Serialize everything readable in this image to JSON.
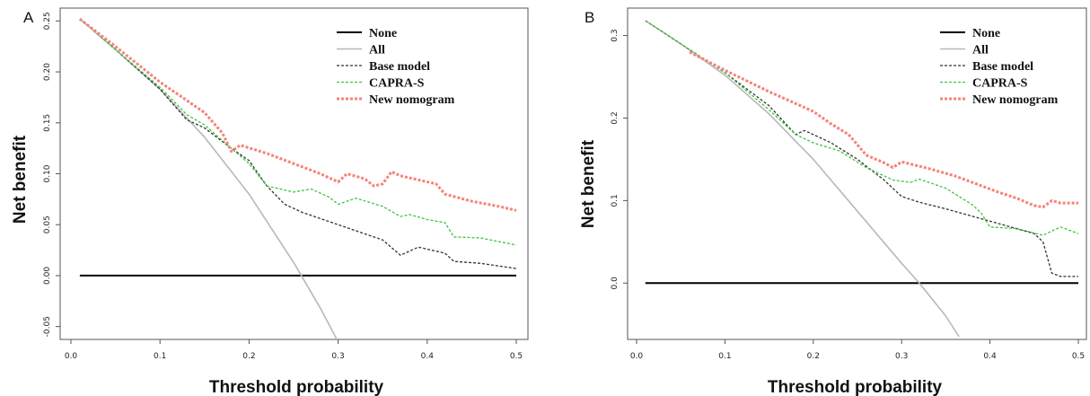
{
  "chart_data": [
    {
      "type": "line",
      "panel_label": "A",
      "xlabel": "Threshold probability",
      "ylabel": "Net benefit",
      "xlim": [
        0,
        0.5
      ],
      "ylim": [
        -0.06,
        0.26
      ],
      "x_ticks": [
        "0.0",
        "0.1",
        "0.2",
        "0.3",
        "0.4",
        "0.5"
      ],
      "x_tick_values": [
        0,
        0.1,
        0.2,
        0.3,
        0.4,
        0.5
      ],
      "y_ticks": [
        "-0.05",
        "0.00",
        "0.05",
        "0.10",
        "0.15",
        "0.20",
        "0.25"
      ],
      "y_tick_values": [
        -0.05,
        0.0,
        0.05,
        0.1,
        0.15,
        0.2,
        0.25
      ],
      "legend_position": "top-right",
      "grid": false,
      "series": [
        {
          "name": "None",
          "color": "#000000",
          "dash": "solid",
          "width": 2,
          "points": [
            [
              0.01,
              0.0
            ],
            [
              0.5,
              0.0
            ]
          ]
        },
        {
          "name": "All",
          "color": "#b8b8b8",
          "dash": "solid",
          "width": 1.6,
          "points": [
            [
              0.01,
              0.252
            ],
            [
              0.05,
              0.222
            ],
            [
              0.1,
              0.183
            ],
            [
              0.15,
              0.136
            ],
            [
              0.2,
              0.08
            ],
            [
              0.25,
              0.013
            ],
            [
              0.28,
              -0.032
            ],
            [
              0.3,
              -0.065
            ]
          ]
        },
        {
          "name": "Base model",
          "color": "#333333",
          "dash": "3,2",
          "width": 1.3,
          "points": [
            [
              0.01,
              0.252
            ],
            [
              0.05,
              0.222
            ],
            [
              0.1,
              0.183
            ],
            [
              0.13,
              0.153
            ],
            [
              0.15,
              0.145
            ],
            [
              0.18,
              0.125
            ],
            [
              0.2,
              0.113
            ],
            [
              0.22,
              0.088
            ],
            [
              0.24,
              0.07
            ],
            [
              0.26,
              0.062
            ],
            [
              0.3,
              0.05
            ],
            [
              0.35,
              0.035
            ],
            [
              0.37,
              0.02
            ],
            [
              0.39,
              0.028
            ],
            [
              0.42,
              0.022
            ],
            [
              0.43,
              0.014
            ],
            [
              0.46,
              0.012
            ],
            [
              0.5,
              0.007
            ]
          ]
        },
        {
          "name": "CAPRA-S",
          "color": "#3dc43d",
          "dash": "3,2",
          "width": 1.3,
          "points": [
            [
              0.01,
              0.252
            ],
            [
              0.05,
              0.222
            ],
            [
              0.1,
              0.185
            ],
            [
              0.13,
              0.158
            ],
            [
              0.15,
              0.148
            ],
            [
              0.18,
              0.125
            ],
            [
              0.2,
              0.11
            ],
            [
              0.22,
              0.088
            ],
            [
              0.25,
              0.082
            ],
            [
              0.27,
              0.085
            ],
            [
              0.29,
              0.077
            ],
            [
              0.3,
              0.07
            ],
            [
              0.32,
              0.076
            ],
            [
              0.35,
              0.068
            ],
            [
              0.37,
              0.058
            ],
            [
              0.38,
              0.06
            ],
            [
              0.4,
              0.055
            ],
            [
              0.42,
              0.052
            ],
            [
              0.43,
              0.038
            ],
            [
              0.46,
              0.037
            ],
            [
              0.5,
              0.03
            ]
          ]
        },
        {
          "name": "New nomogram",
          "color": "#f4837a",
          "dash": "3,2",
          "width": 3,
          "points": [
            [
              0.01,
              0.252
            ],
            [
              0.05,
              0.225
            ],
            [
              0.1,
              0.19
            ],
            [
              0.15,
              0.16
            ],
            [
              0.17,
              0.14
            ],
            [
              0.18,
              0.122
            ],
            [
              0.19,
              0.128
            ],
            [
              0.22,
              0.12
            ],
            [
              0.25,
              0.11
            ],
            [
              0.28,
              0.1
            ],
            [
              0.3,
              0.092
            ],
            [
              0.31,
              0.1
            ],
            [
              0.33,
              0.095
            ],
            [
              0.34,
              0.088
            ],
            [
              0.35,
              0.09
            ],
            [
              0.36,
              0.102
            ],
            [
              0.37,
              0.098
            ],
            [
              0.39,
              0.094
            ],
            [
              0.41,
              0.09
            ],
            [
              0.42,
              0.08
            ],
            [
              0.45,
              0.073
            ],
            [
              0.48,
              0.068
            ],
            [
              0.5,
              0.064
            ]
          ]
        }
      ]
    },
    {
      "type": "line",
      "panel_label": "B",
      "xlabel": "Threshold probability",
      "ylabel": "Net benefit",
      "xlim": [
        0,
        0.5
      ],
      "ylim": [
        -0.065,
        0.33
      ],
      "x_ticks": [
        "0.0",
        "0.1",
        "0.2",
        "0.3",
        "0.4",
        "0.5"
      ],
      "x_tick_values": [
        0,
        0.1,
        0.2,
        0.3,
        0.4,
        0.5
      ],
      "y_ticks": [
        "0.0",
        "0.1",
        "0.2",
        "0.3"
      ],
      "y_tick_values": [
        0.0,
        0.1,
        0.2,
        0.3
      ],
      "legend_position": "top-right",
      "grid": false,
      "series": [
        {
          "name": "None",
          "color": "#000000",
          "dash": "solid",
          "width": 2,
          "points": [
            [
              0.01,
              0.0
            ],
            [
              0.5,
              0.0
            ]
          ]
        },
        {
          "name": "All",
          "color": "#b8b8b8",
          "dash": "solid",
          "width": 1.6,
          "points": [
            [
              0.01,
              0.318
            ],
            [
              0.05,
              0.29
            ],
            [
              0.1,
              0.252
            ],
            [
              0.15,
              0.205
            ],
            [
              0.2,
              0.15
            ],
            [
              0.25,
              0.087
            ],
            [
              0.3,
              0.024
            ],
            [
              0.32,
              0.0
            ],
            [
              0.35,
              -0.04
            ],
            [
              0.365,
              -0.065
            ]
          ]
        },
        {
          "name": "Base model",
          "color": "#333333",
          "dash": "3,2",
          "width": 1.3,
          "points": [
            [
              0.01,
              0.318
            ],
            [
              0.05,
              0.29
            ],
            [
              0.1,
              0.255
            ],
            [
              0.15,
              0.215
            ],
            [
              0.18,
              0.18
            ],
            [
              0.19,
              0.185
            ],
            [
              0.22,
              0.17
            ],
            [
              0.25,
              0.15
            ],
            [
              0.28,
              0.125
            ],
            [
              0.3,
              0.105
            ],
            [
              0.32,
              0.098
            ],
            [
              0.35,
              0.09
            ],
            [
              0.4,
              0.075
            ],
            [
              0.45,
              0.06
            ],
            [
              0.46,
              0.05
            ],
            [
              0.47,
              0.012
            ],
            [
              0.48,
              0.008
            ],
            [
              0.5,
              0.008
            ]
          ]
        },
        {
          "name": "CAPRA-S",
          "color": "#3dc43d",
          "dash": "3,2",
          "width": 1.3,
          "points": [
            [
              0.01,
              0.318
            ],
            [
              0.05,
              0.29
            ],
            [
              0.1,
              0.255
            ],
            [
              0.15,
              0.21
            ],
            [
              0.18,
              0.18
            ],
            [
              0.2,
              0.17
            ],
            [
              0.23,
              0.16
            ],
            [
              0.26,
              0.14
            ],
            [
              0.29,
              0.125
            ],
            [
              0.31,
              0.122
            ],
            [
              0.32,
              0.126
            ],
            [
              0.35,
              0.115
            ],
            [
              0.38,
              0.095
            ],
            [
              0.39,
              0.085
            ],
            [
              0.4,
              0.068
            ],
            [
              0.43,
              0.066
            ],
            [
              0.46,
              0.058
            ],
            [
              0.48,
              0.068
            ],
            [
              0.5,
              0.06
            ]
          ]
        },
        {
          "name": "New nomogram",
          "color": "#f4837a",
          "dash": "3,2",
          "width": 3,
          "points": [
            [
              0.06,
              0.28
            ],
            [
              0.1,
              0.258
            ],
            [
              0.15,
              0.232
            ],
            [
              0.2,
              0.208
            ],
            [
              0.22,
              0.193
            ],
            [
              0.24,
              0.18
            ],
            [
              0.26,
              0.155
            ],
            [
              0.28,
              0.146
            ],
            [
              0.29,
              0.14
            ],
            [
              0.3,
              0.147
            ],
            [
              0.33,
              0.139
            ],
            [
              0.36,
              0.13
            ],
            [
              0.38,
              0.122
            ],
            [
              0.41,
              0.11
            ],
            [
              0.43,
              0.103
            ],
            [
              0.45,
              0.094
            ],
            [
              0.46,
              0.092
            ],
            [
              0.47,
              0.1
            ],
            [
              0.48,
              0.097
            ],
            [
              0.5,
              0.097
            ]
          ]
        }
      ]
    }
  ]
}
